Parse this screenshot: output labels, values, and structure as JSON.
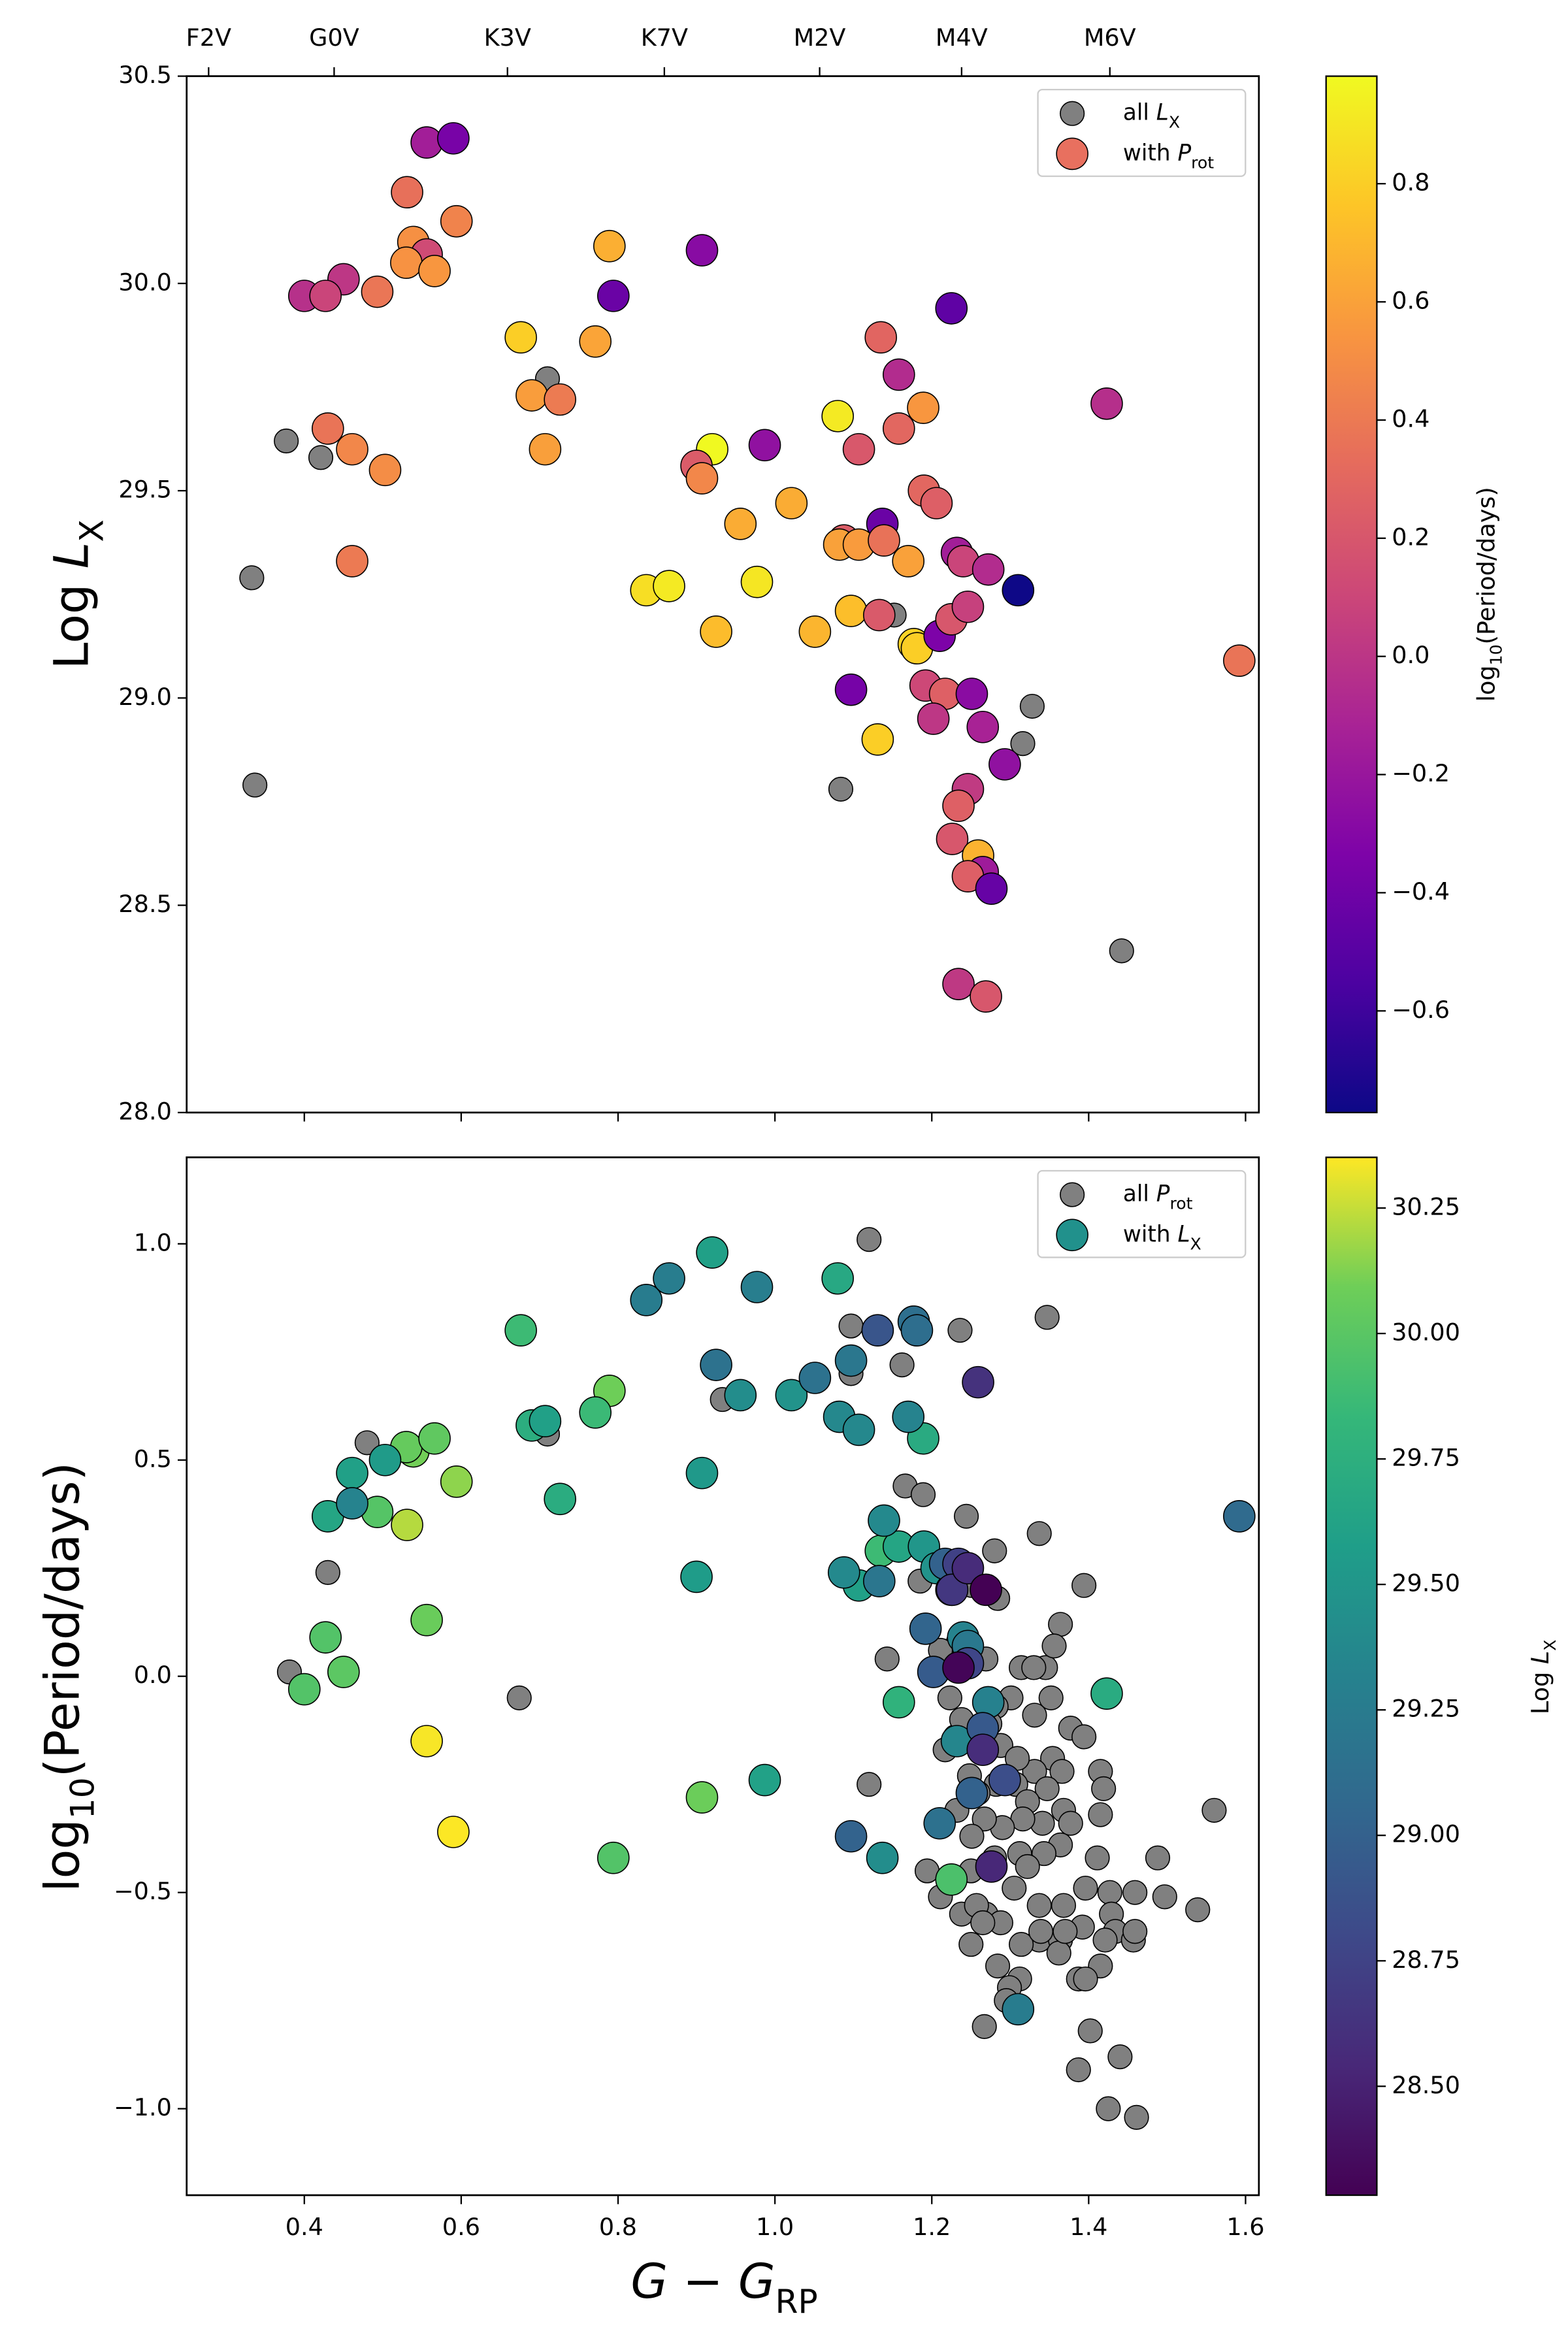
{
  "chart_data": [
    {
      "type": "scatter",
      "ylabel": [
        "Log ",
        "L",
        "X"
      ],
      "xlim": [
        0.25,
        1.617
      ],
      "ylim": [
        28.0,
        30.5
      ],
      "xticks": [
        0.4,
        0.6,
        0.8,
        1.0,
        1.2,
        1.4,
        1.6
      ],
      "xtick_labels": false,
      "x2ticks": [
        {
          "value": 0.278,
          "label": "F2V"
        },
        {
          "value": 0.438,
          "label": "G0V"
        },
        {
          "value": 0.659,
          "label": "K3V"
        },
        {
          "value": 0.859,
          "label": "K7V"
        },
        {
          "value": 1.057,
          "label": "M2V"
        },
        {
          "value": 1.238,
          "label": "M4V"
        },
        {
          "value": 1.427,
          "label": "M6V"
        }
      ],
      "yticks": [
        {
          "value": 28,
          "label": "28.0"
        },
        28.5,
        {
          "value": 29,
          "label": "29.0"
        },
        29.5,
        {
          "value": 30,
          "label": "30.0"
        },
        30.5
      ],
      "legend": "upper right",
      "colorbar": {
        "label": [
          "log",
          "10",
          "(Period/days)"
        ],
        "cmap": "plasma",
        "lim": [
          -0.772,
          0.982
        ],
        "ticks": [
          {
            "value": -0.6,
            "label": "−0.6"
          },
          {
            "value": -0.4,
            "label": "−0.4"
          },
          {
            "value": -0.2,
            "label": "−0.2"
          },
          {
            "value": 0,
            "label": "0.0"
          },
          0.2,
          0.4,
          0.6,
          0.8
        ]
      },
      "series": [
        {
          "name": [
            "all ",
            "L",
            "X"
          ],
          "color": "#808080",
          "x": [
            0.333,
            0.337,
            0.377,
            0.421,
            0.71,
            1.152,
            1.084,
            1.328,
            1.316,
            1.442
          ],
          "values": [
            29.29,
            28.79,
            29.62,
            29.58,
            29.77,
            29.2,
            28.78,
            28.98,
            28.89,
            28.39
          ]
        },
        {
          "name": [
            "with ",
            "P",
            "rot"
          ],
          "color": "#e8705f",
          "x": [
            0.556,
            0.59,
            0.531,
            0.594,
            0.539,
            0.556,
            0.53,
            0.566,
            0.45,
            0.4,
            0.427,
            0.493,
            0.43,
            0.461,
            0.503,
            0.461,
            0.789,
            0.907,
            0.794,
            0.676,
            0.771,
            0.69,
            0.726,
            0.707,
            0.92,
            0.987,
            0.9,
            0.907,
            1.021,
            0.956,
            0.836,
            0.865,
            0.977,
            0.925,
            1.051,
            1.08,
            1.135,
            1.107,
            1.158,
            1.189,
            1.158,
            1.19,
            1.225,
            1.206,
            1.137,
            1.088,
            1.082,
            1.107,
            1.139,
            1.17,
            1.232,
            1.24,
            1.272,
            1.31,
            1.097,
            1.133,
            1.177,
            1.181,
            1.21,
            1.225,
            1.246,
            1.097,
            1.192,
            1.217,
            1.251,
            1.202,
            1.265,
            1.131,
            1.293,
            1.246,
            1.234,
            1.226,
            1.259,
            1.265,
            1.246,
            1.276,
            1.234,
            1.269,
            1.423,
            1.592
          ],
          "values": [
            30.34,
            30.35,
            30.22,
            30.15,
            30.1,
            30.07,
            30.05,
            30.03,
            30.01,
            29.97,
            29.97,
            29.98,
            29.65,
            29.6,
            29.55,
            29.33,
            30.09,
            30.08,
            29.97,
            29.87,
            29.86,
            29.73,
            29.72,
            29.6,
            29.6,
            29.61,
            29.56,
            29.53,
            29.47,
            29.42,
            29.26,
            29.27,
            29.28,
            29.16,
            29.16,
            29.68,
            29.87,
            29.6,
            29.78,
            29.7,
            29.65,
            29.5,
            29.94,
            29.47,
            29.42,
            29.38,
            29.37,
            29.37,
            29.38,
            29.33,
            29.35,
            29.33,
            29.31,
            29.26,
            29.21,
            29.2,
            29.13,
            29.12,
            29.15,
            29.19,
            29.22,
            29.02,
            29.03,
            29.01,
            29.01,
            28.95,
            28.93,
            28.9,
            28.84,
            28.78,
            28.74,
            28.66,
            28.62,
            28.58,
            28.57,
            28.54,
            28.31,
            28.28,
            29.71,
            29.09
          ],
          "c": [
            -0.15,
            -0.36,
            0.35,
            0.45,
            0.52,
            0.13,
            0.53,
            0.55,
            0.01,
            -0.03,
            0.09,
            0.38,
            0.37,
            0.47,
            0.5,
            0.4,
            0.66,
            -0.28,
            -0.42,
            0.8,
            0.61,
            0.58,
            0.41,
            0.59,
            0.98,
            -0.24,
            0.23,
            0.47,
            0.65,
            0.65,
            0.87,
            0.92,
            0.9,
            0.72,
            0.69,
            0.92,
            0.29,
            0.21,
            -0.06,
            0.55,
            0.3,
            0.3,
            -0.47,
            0.25,
            -0.42,
            0.24,
            0.6,
            0.57,
            0.36,
            0.6,
            -0.15,
            0.09,
            -0.06,
            -0.77,
            0.73,
            0.22,
            0.82,
            0.8,
            -0.34,
            0.2,
            0.07,
            -0.37,
            0.11,
            0.26,
            -0.27,
            0.01,
            -0.12,
            0.8,
            -0.24,
            0.03,
            0.26,
            0.2,
            0.68,
            -0.17,
            0.25,
            -0.44,
            0.02,
            0.2,
            -0.04,
            0.37
          ]
        }
      ]
    },
    {
      "type": "scatter",
      "ylabel": [
        "log",
        "10",
        "(Period/days)"
      ],
      "xlabel": [
        "G",
        " − ",
        "G",
        "RP"
      ],
      "xlim": [
        0.25,
        1.617
      ],
      "ylim": [
        -1.2,
        1.2
      ],
      "xticks": [
        0.4,
        0.6,
        0.8,
        {
          "value": 1,
          "label": "1.0"
        },
        1.2,
        1.4,
        1.6
      ],
      "xtick_labels": true,
      "yticks": [
        {
          "value": -1,
          "label": "−1.0"
        },
        {
          "value": -0.5,
          "label": "−0.5"
        },
        {
          "value": 0,
          "label": "0.0"
        },
        0.5,
        {
          "value": 1,
          "label": "1.0"
        }
      ],
      "legend": "upper right",
      "colorbar": {
        "label": [
          "Log ",
          "L",
          "X"
        ],
        "cmap": "viridis",
        "lim": [
          28.283,
          30.351
        ],
        "ticks": [
          {
            "value": 28.5,
            "label": "28.50"
          },
          28.75,
          {
            "value": 29,
            "label": "29.00"
          },
          29.25,
          {
            "value": 29.5,
            "label": "29.50"
          },
          29.75,
          {
            "value": 30,
            "label": "30.00"
          },
          30.25
        ]
      },
      "series": [
        {
          "name": [
            "all ",
            "P",
            "rot"
          ],
          "color": "#808080",
          "x": [
            1.12,
            0.381,
            0.43,
            0.48,
            0.674,
            0.71,
            0.933,
            1.097,
            1.097,
            1.162,
            1.236,
            1.347,
            1.166,
            1.189,
            1.244,
            1.337,
            1.28,
            1.185,
            1.251,
            1.394,
            1.284,
            1.364,
            1.234,
            1.314,
            1.345,
            1.356,
            1.33,
            1.352,
            1.301,
            1.331,
            1.377,
            1.394,
            1.23,
            1.263,
            1.354,
            1.415,
            1.419,
            1.366,
            1.331,
            1.307,
            1.282,
            1.347,
            1.322,
            1.368,
            1.415,
            1.377,
            1.341,
            1.316,
            1.29,
            1.267,
            1.251,
            1.232,
            1.364,
            1.343,
            1.312,
            1.28,
            1.25,
            1.225,
            1.194,
            1.322,
            1.411,
            1.305,
            1.396,
            1.427,
            1.429,
            1.392,
            1.434,
            1.459,
            1.368,
            1.337,
            1.269,
            1.238,
            1.211,
            1.257,
            1.457,
            1.497,
            1.539,
            1.56,
            1.488,
            1.337,
            1.421,
            1.459,
            1.12,
            1.288,
            1.25,
            1.265,
            1.364,
            1.362,
            1.415,
            1.314,
            1.284,
            1.339,
            1.37,
            1.387,
            1.396,
            1.312,
            1.299,
            1.295,
            1.267,
            1.402,
            1.44,
            1.387,
            1.425,
            1.461,
            1.143,
            1.211,
            1.269,
            1.223,
            1.238,
            1.217,
            1.282,
            1.288,
            1.259,
            1.248,
            1.309,
            1.274
          ],
          "values": [
            1.01,
            0.01,
            0.24,
            0.54,
            -0.05,
            0.56,
            0.64,
            0.81,
            0.7,
            0.72,
            0.8,
            0.83,
            0.44,
            0.42,
            0.37,
            0.33,
            0.29,
            0.22,
            0.21,
            0.21,
            0.18,
            0.12,
            0.08,
            0.02,
            0.02,
            0.07,
            0.02,
            -0.05,
            -0.05,
            -0.09,
            -0.12,
            -0.14,
            -0.14,
            -0.14,
            -0.19,
            -0.22,
            -0.26,
            -0.22,
            -0.22,
            -0.25,
            -0.25,
            -0.26,
            -0.29,
            -0.31,
            -0.32,
            -0.34,
            -0.34,
            -0.33,
            -0.35,
            -0.33,
            -0.37,
            -0.31,
            -0.39,
            -0.41,
            -0.41,
            -0.42,
            -0.45,
            -0.47,
            -0.45,
            -0.44,
            -0.42,
            -0.49,
            -0.49,
            -0.5,
            -0.55,
            -0.58,
            -0.59,
            -0.5,
            -0.53,
            -0.53,
            -0.55,
            -0.55,
            -0.51,
            -0.53,
            -0.61,
            -0.51,
            -0.54,
            -0.31,
            -0.42,
            -0.61,
            -0.61,
            -0.59,
            -0.25,
            -0.57,
            -0.62,
            -0.57,
            -0.61,
            -0.64,
            -0.67,
            -0.62,
            -0.67,
            -0.59,
            -0.59,
            -0.7,
            -0.7,
            -0.7,
            -0.72,
            -0.75,
            -0.81,
            -0.82,
            -0.88,
            -0.91,
            -1.0,
            -1.02,
            0.04,
            0.06,
            0.04,
            -0.05,
            -0.1,
            -0.17,
            -0.07,
            -0.16,
            -0.27,
            -0.23,
            -0.19,
            -0.11
          ]
        },
        {
          "name": [
            "with ",
            "L",
            "X"
          ],
          "color": "#21918c",
          "x": [
            0.556,
            0.59,
            0.531,
            0.594,
            0.539,
            0.556,
            0.53,
            0.566,
            0.45,
            0.4,
            0.427,
            0.493,
            0.43,
            0.461,
            0.503,
            0.461,
            0.789,
            0.907,
            0.794,
            0.676,
            0.771,
            0.69,
            0.726,
            0.707,
            0.92,
            0.987,
            0.9,
            0.907,
            1.021,
            0.956,
            0.836,
            0.865,
            0.977,
            0.925,
            1.051,
            1.08,
            1.135,
            1.107,
            1.158,
            1.189,
            1.158,
            1.19,
            1.225,
            1.206,
            1.137,
            1.088,
            1.082,
            1.107,
            1.139,
            1.17,
            1.232,
            1.24,
            1.272,
            1.31,
            1.097,
            1.133,
            1.177,
            1.181,
            1.21,
            1.225,
            1.246,
            1.097,
            1.192,
            1.217,
            1.251,
            1.202,
            1.265,
            1.131,
            1.293,
            1.246,
            1.234,
            1.226,
            1.259,
            1.265,
            1.246,
            1.276,
            1.234,
            1.269,
            1.423,
            1.592
          ],
          "values": [
            -0.15,
            -0.36,
            0.35,
            0.45,
            0.52,
            0.13,
            0.53,
            0.55,
            0.01,
            -0.03,
            0.09,
            0.38,
            0.37,
            0.47,
            0.5,
            0.4,
            0.66,
            -0.28,
            -0.42,
            0.8,
            0.61,
            0.58,
            0.41,
            0.59,
            0.98,
            -0.24,
            0.23,
            0.47,
            0.65,
            0.65,
            0.87,
            0.92,
            0.9,
            0.72,
            0.69,
            0.92,
            0.29,
            0.21,
            -0.06,
            0.55,
            0.3,
            0.3,
            -0.47,
            0.25,
            -0.42,
            0.24,
            0.6,
            0.57,
            0.36,
            0.6,
            -0.15,
            0.09,
            -0.06,
            -0.77,
            0.73,
            0.22,
            0.82,
            0.8,
            -0.34,
            0.2,
            0.07,
            -0.37,
            0.11,
            0.26,
            -0.27,
            0.01,
            -0.12,
            0.8,
            -0.24,
            0.03,
            0.26,
            0.2,
            0.68,
            -0.17,
            0.25,
            -0.44,
            0.02,
            0.2,
            -0.04,
            0.37
          ],
          "c": [
            30.34,
            30.35,
            30.22,
            30.15,
            30.1,
            30.07,
            30.05,
            30.03,
            30.01,
            29.97,
            29.97,
            29.98,
            29.65,
            29.6,
            29.55,
            29.33,
            30.09,
            30.08,
            29.97,
            29.87,
            29.86,
            29.73,
            29.72,
            29.6,
            29.6,
            29.61,
            29.56,
            29.53,
            29.47,
            29.42,
            29.26,
            29.27,
            29.28,
            29.16,
            29.16,
            29.68,
            29.87,
            29.6,
            29.78,
            29.7,
            29.65,
            29.5,
            29.94,
            29.47,
            29.42,
            29.38,
            29.37,
            29.37,
            29.38,
            29.33,
            29.35,
            29.33,
            29.31,
            29.26,
            29.21,
            29.2,
            29.13,
            29.12,
            29.15,
            29.19,
            29.22,
            29.02,
            29.03,
            29.01,
            29.01,
            28.95,
            28.93,
            28.9,
            28.84,
            28.78,
            28.74,
            28.66,
            28.62,
            28.58,
            28.57,
            28.54,
            28.31,
            28.28,
            29.71,
            29.09
          ]
        }
      ]
    }
  ]
}
